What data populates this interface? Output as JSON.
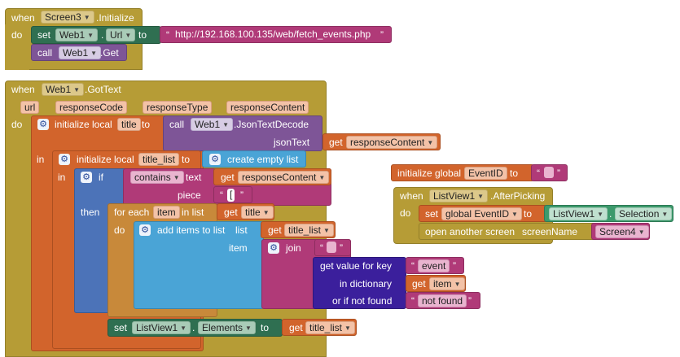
{
  "screen_init": {
    "when": "when",
    "component": "Screen3",
    "event": ".Initialize",
    "do": "do",
    "set": "set",
    "set_component": "Web1",
    "dot": ".",
    "property": "Url",
    "to": "to",
    "url_value": "http://192.168.100.135/web/fetch_events.php",
    "call": "call",
    "call_component": "Web1",
    "call_method": ".Get"
  },
  "gottext": {
    "when": "when",
    "component": "Web1",
    "event": ".GotText",
    "params": [
      "url",
      "responseCode",
      "responseType",
      "responseContent"
    ],
    "do": "do",
    "in1": "in",
    "in2": "in",
    "init_local": "initialize local",
    "var_title": "title",
    "to": "to",
    "call": "call",
    "call_component": "Web1",
    "call_method": ".JsonTextDecode",
    "json_text_label": "jsonText",
    "get": "get",
    "get_response": "responseContent",
    "var_title_list": "title_list",
    "create_empty_list": "create empty list",
    "if": "if",
    "contains": "contains",
    "text_label": "text",
    "piece_label": "piece",
    "piece_value": "[",
    "then": "then",
    "for_each": "for each",
    "item_var": "item",
    "in_list": "in list",
    "get_title": "title",
    "add_items": "add items to list",
    "list_label": "list",
    "item_label": "item",
    "get_title_list": "title_list",
    "join": "join",
    "get_value_for_key": "get value for key",
    "key_value": "event",
    "in_dictionary": "in dictionary",
    "get_item": "item",
    "or_if_not_found": "or if not found",
    "not_found_value": "not found",
    "set": "set",
    "set_component": "ListView1",
    "set_property": "Elements"
  },
  "global_var": {
    "label": "initialize global",
    "name": "EventID",
    "to": "to"
  },
  "afterpicking": {
    "when": "when",
    "component": "ListView1",
    "event": ".AfterPicking",
    "do": "do",
    "set": "set",
    "set_var": "global EventID",
    "to": "to",
    "value_component": "ListView1",
    "value_property": "Selection",
    "open_screen": "open another screen",
    "screen_name_label": "screenName",
    "screen_value": "Screen4"
  }
}
